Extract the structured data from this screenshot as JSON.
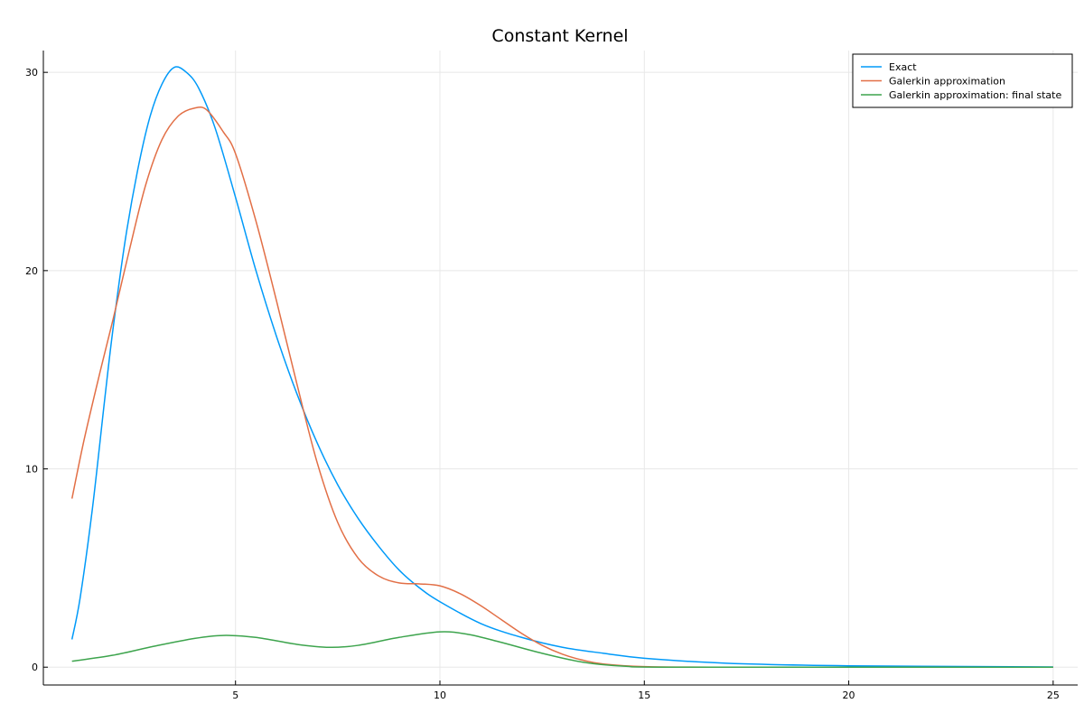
{
  "chart_data": {
    "type": "line",
    "title": "Constant Kernel",
    "xlabel": "",
    "ylabel": "",
    "xlim": [
      0.3,
      25.6
    ],
    "ylim": [
      -0.9,
      31.1
    ],
    "xticks": [
      5,
      10,
      15,
      20,
      25
    ],
    "yticks": [
      0,
      10,
      20,
      30
    ],
    "grid": true,
    "legend_position": "top-right",
    "series": [
      {
        "name": "Exact",
        "color": "#009af9",
        "points": [
          [
            1.0,
            1.4
          ],
          [
            1.2,
            3.5
          ],
          [
            1.5,
            8.0
          ],
          [
            1.8,
            13.5
          ],
          [
            2.0,
            17.0
          ],
          [
            2.3,
            21.5
          ],
          [
            2.6,
            25.0
          ],
          [
            2.9,
            27.7
          ],
          [
            3.2,
            29.4
          ],
          [
            3.5,
            30.25
          ],
          [
            3.8,
            30.0
          ],
          [
            4.1,
            29.2
          ],
          [
            4.5,
            27.2
          ],
          [
            5.0,
            23.7
          ],
          [
            5.5,
            20.0
          ],
          [
            6.0,
            16.7
          ],
          [
            6.5,
            13.8
          ],
          [
            7.0,
            11.3
          ],
          [
            7.5,
            9.2
          ],
          [
            8.0,
            7.5
          ],
          [
            8.5,
            6.1
          ],
          [
            9.0,
            4.9
          ],
          [
            9.5,
            4.0
          ],
          [
            10.0,
            3.3
          ],
          [
            11.0,
            2.2
          ],
          [
            12.0,
            1.5
          ],
          [
            13.0,
            1.0
          ],
          [
            14.0,
            0.7
          ],
          [
            15.0,
            0.45
          ],
          [
            17.0,
            0.2
          ],
          [
            20.0,
            0.07
          ],
          [
            25.0,
            0.01
          ]
        ]
      },
      {
        "name": "Galerkin approximation",
        "color": "#e26f46",
        "points": [
          [
            1.0,
            8.5
          ],
          [
            1.3,
            11.5
          ],
          [
            1.7,
            15.0
          ],
          [
            2.0,
            17.5
          ],
          [
            2.4,
            21.0
          ],
          [
            2.8,
            24.3
          ],
          [
            3.2,
            26.6
          ],
          [
            3.6,
            27.8
          ],
          [
            4.0,
            28.2
          ],
          [
            4.3,
            28.1
          ],
          [
            4.7,
            27.0
          ],
          [
            5.0,
            25.9
          ],
          [
            5.5,
            22.5
          ],
          [
            6.0,
            18.5
          ],
          [
            6.5,
            14.3
          ],
          [
            7.0,
            10.3
          ],
          [
            7.5,
            7.3
          ],
          [
            8.0,
            5.5
          ],
          [
            8.5,
            4.6
          ],
          [
            9.0,
            4.25
          ],
          [
            9.5,
            4.2
          ],
          [
            10.0,
            4.1
          ],
          [
            10.5,
            3.7
          ],
          [
            11.0,
            3.1
          ],
          [
            11.5,
            2.4
          ],
          [
            12.0,
            1.7
          ],
          [
            12.5,
            1.1
          ],
          [
            13.0,
            0.65
          ],
          [
            13.5,
            0.35
          ],
          [
            14.0,
            0.16
          ],
          [
            15.0,
            0.03
          ],
          [
            17.0,
            0.0
          ],
          [
            25.0,
            0.0
          ]
        ]
      },
      {
        "name": "Galerkin approximation: final state",
        "color": "#3da44d",
        "points": [
          [
            1.0,
            0.3
          ],
          [
            2.0,
            0.6
          ],
          [
            3.0,
            1.05
          ],
          [
            4.0,
            1.45
          ],
          [
            4.7,
            1.6
          ],
          [
            5.5,
            1.5
          ],
          [
            6.5,
            1.15
          ],
          [
            7.3,
            1.0
          ],
          [
            8.0,
            1.1
          ],
          [
            9.0,
            1.5
          ],
          [
            10.0,
            1.78
          ],
          [
            10.7,
            1.65
          ],
          [
            11.5,
            1.25
          ],
          [
            12.5,
            0.7
          ],
          [
            13.5,
            0.25
          ],
          [
            14.5,
            0.05
          ],
          [
            16.0,
            0.0
          ],
          [
            25.0,
            0.0
          ]
        ]
      }
    ]
  }
}
